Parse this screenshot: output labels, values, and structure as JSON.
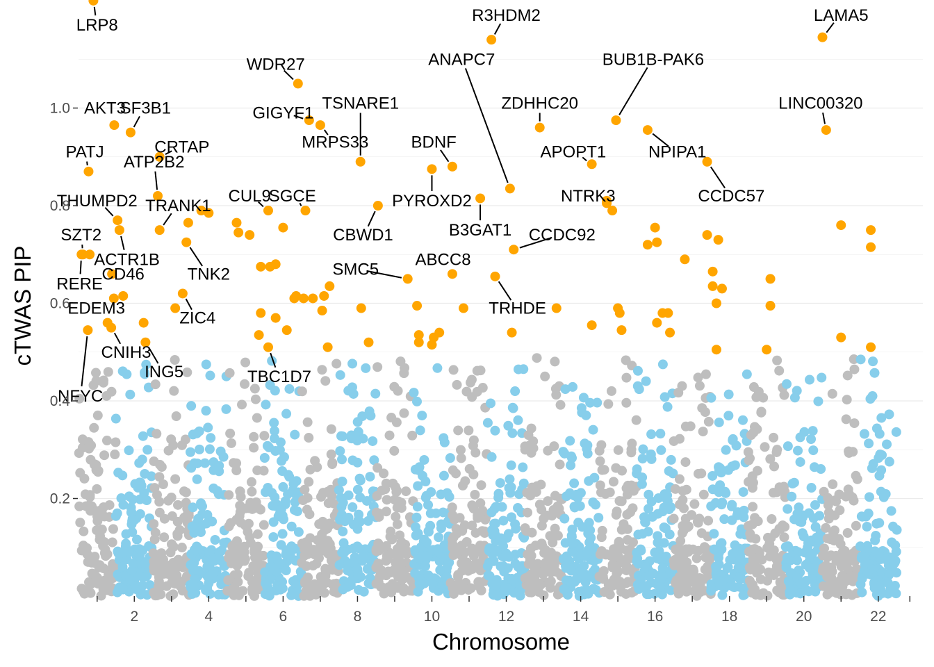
{
  "chart_data": {
    "type": "scatter",
    "title": "",
    "xlabel": "Chromosome",
    "ylabel": "cTWAS PIP",
    "grid": true,
    "xlim": [
      0.3,
      23
    ],
    "ylim": [
      0,
      1.2
    ],
    "y_ticks": [
      0.2,
      0.4,
      0.6,
      0.8,
      1.0
    ],
    "y_tick_labels": [
      "0.2",
      "0.4",
      "0.6",
      "0.8",
      "1.0"
    ],
    "chromosome_bounds": [
      0.3,
      1.3,
      2.3,
      3.3,
      4.3,
      5.3,
      6.3,
      7.3,
      8.3,
      9.3,
      10.3,
      11.3,
      12.3,
      13.3,
      14.3,
      15.3,
      16.3,
      17.3,
      18.3,
      19.3,
      20.3,
      21.3,
      22.3,
      23.0
    ],
    "chromosome_widths": [
      9.7,
      9.5,
      7.9,
      7.5,
      7.1,
      6.7,
      6.3,
      5.8,
      5.3,
      5.3,
      5.3,
      5.2,
      4.5,
      4.1,
      3.9,
      3.5,
      3.2,
      3.1,
      2.3,
      2.5,
      1.8,
      2.0
    ],
    "x_tick_positions": [
      0.8,
      1.8,
      2.8,
      3.8,
      4.8,
      5.8,
      6.8,
      7.8,
      8.8,
      9.8,
      10.8,
      11.8,
      12.8,
      13.8,
      14.8,
      15.8,
      16.8,
      17.8,
      18.8,
      19.8,
      20.8,
      21.8,
      22.65
    ],
    "x_tick_labels": [
      "",
      "2",
      "",
      "4",
      "",
      "6",
      "",
      "8",
      "",
      "10",
      "",
      "12",
      "",
      "14",
      "",
      "16",
      "",
      "18",
      "",
      "20",
      "",
      "22",
      ""
    ],
    "colors": {
      "odd_chromosome": "#bebebe",
      "even_chromosome": "#87ceeb",
      "significant": "#ffa500",
      "grid": "#ebebeb",
      "tick": "#333333",
      "leader": "#000000"
    },
    "significance_threshold": 0.5,
    "background_points_per_chromosome": 110,
    "significant_genes": [
      {
        "gene": "LRP8",
        "chr": 1,
        "pos": 0.4,
        "pip": 1.22,
        "label": "LRP8",
        "label_x": 0.1,
        "label_y": 1.17
      },
      {
        "gene": "AKT3",
        "chr": 1,
        "pos": 0.96,
        "pip": 0.965,
        "label": "AKT3",
        "label_x": -0.25,
        "label_y": 1.0
      },
      {
        "gene": "SF3B1",
        "chr": 2,
        "pos": 0.4,
        "pip": 0.95,
        "label": "SF3B1",
        "label_x": 0.4,
        "label_y": 1.0
      },
      {
        "gene": "PATJ",
        "chr": 1,
        "pos": 0.27,
        "pip": 0.87,
        "label": "PATJ",
        "label_x": -0.1,
        "label_y": 0.91
      },
      {
        "gene": "ATP2B2",
        "chr": 3,
        "pos": 0.13,
        "pip": 0.82,
        "label": "ATP2B2",
        "label_x": -0.1,
        "label_y": 0.89
      },
      {
        "gene": "CRTAP",
        "chr": 3,
        "pos": 0.18,
        "pip": 0.9,
        "label": "CRTAP",
        "label_x": 0.6,
        "label_y": 0.92
      },
      {
        "gene": "THUMPD2",
        "chr": 2,
        "pos": 0.05,
        "pip": 0.77,
        "label": "THUMPD2",
        "label_x": -0.55,
        "label_y": 0.81
      },
      {
        "gene": "TRANK1",
        "chr": 3,
        "pos": 0.18,
        "pip": 0.75,
        "label": "TRANK1",
        "label_x": 0.5,
        "label_y": 0.8
      },
      {
        "gene": "ACTR1B",
        "chr": 2,
        "pos": 0.1,
        "pip": 0.75,
        "label": "ACTR1B",
        "label_x": 0.2,
        "label_y": 0.69
      },
      {
        "gene": "SZT2",
        "chr": 1,
        "pos": 0.12,
        "pip": 0.7,
        "label": "SZT2",
        "label_x": -0.05,
        "label_y": 0.74
      },
      {
        "gene": "RERE",
        "chr": 1,
        "pos": 0.08,
        "pip": 0.7,
        "label": "RERE",
        "label_x": -0.05,
        "label_y": 0.64
      },
      {
        "gene": "CD46",
        "chr": 1,
        "pos": 0.9,
        "pip": 0.66,
        "label": "CD46",
        "label_x": 0.3,
        "label_y": 0.66
      },
      {
        "gene": "EDEM3",
        "chr": 1,
        "pos": 0.78,
        "pip": 0.56,
        "label": "EDEM3",
        "label_x": -0.3,
        "label_y": 0.59
      },
      {
        "gene": "CNIH3",
        "chr": 1,
        "pos": 0.88,
        "pip": 0.55,
        "label": "CNIH3",
        "label_x": 0.4,
        "label_y": 0.5
      },
      {
        "gene": "NFYC",
        "chr": 1,
        "pos": 0.25,
        "pip": 0.545,
        "label": "NFYC",
        "label_x": -0.2,
        "label_y": 0.41
      },
      {
        "gene": "ZIC4",
        "chr": 3,
        "pos": 0.8,
        "pip": 0.62,
        "label": "ZIC4",
        "label_x": 0.4,
        "label_y": 0.57
      },
      {
        "gene": "ING5",
        "chr": 2,
        "pos": 0.8,
        "pip": 0.52,
        "label": "ING5",
        "label_x": 0.5,
        "label_y": 0.46
      },
      {
        "gene": "TNK2",
        "chr": 3,
        "pos": 0.9,
        "pip": 0.725,
        "label": "TNK2",
        "label_x": 0.6,
        "label_y": 0.66
      },
      {
        "gene": "CUL9",
        "chr": 6,
        "pos": 0.1,
        "pip": 0.79,
        "label": "CUL9",
        "label_x": -0.5,
        "label_y": 0.82
      },
      {
        "gene": "SGCE",
        "chr": 7,
        "pos": 0.1,
        "pip": 0.79,
        "label": "SGCE",
        "label_x": -0.35,
        "label_y": 0.82
      },
      {
        "gene": "WDR27",
        "chr": 6,
        "pos": 0.9,
        "pip": 1.05,
        "label": "WDR27",
        "label_x": -0.6,
        "label_y": 1.09
      },
      {
        "gene": "GIGYF1",
        "chr": 7,
        "pos": 0.2,
        "pip": 0.975,
        "label": "GIGYF1",
        "label_x": -0.7,
        "label_y": 0.99
      },
      {
        "gene": "TSNARE1",
        "chr": 8,
        "pos": 0.58,
        "pip": 0.89,
        "label": "TSNARE1",
        "label_x": 0.0,
        "label_y": 1.01
      },
      {
        "gene": "MRPS33",
        "chr": 7,
        "pos": 0.5,
        "pip": 0.965,
        "label": "MRPS33",
        "label_x": 0.4,
        "label_y": 0.93
      },
      {
        "gene": "BDNF",
        "chr": 11,
        "pos": 0.05,
        "pip": 0.88,
        "label": "BDNF",
        "label_x": -0.5,
        "label_y": 0.93
      },
      {
        "gene": "PYROXD2",
        "chr": 10,
        "pos": 0.5,
        "pip": 0.875,
        "label": "PYROXD2",
        "label_x": 0.0,
        "label_y": 0.81
      },
      {
        "gene": "CBWD1",
        "chr": 9,
        "pos": 0.05,
        "pip": 0.8,
        "label": "CBWD1",
        "label_x": -0.4,
        "label_y": 0.74
      },
      {
        "gene": "SMC5",
        "chr": 9,
        "pos": 0.85,
        "pip": 0.65,
        "label": "SMC5",
        "label_x": -1.4,
        "label_y": 0.67
      },
      {
        "gene": "ABCC8",
        "chr": 11,
        "pos": 0.05,
        "pip": 0.66,
        "label": "ABCC8",
        "label_x": -0.25,
        "label_y": 0.69
      },
      {
        "gene": "TBC1D7",
        "chr": 6,
        "pos": 0.1,
        "pip": 0.51,
        "label": "TBC1D7",
        "label_x": 0.3,
        "label_y": 0.45
      },
      {
        "gene": "R3HDM2",
        "chr": 12,
        "pos": 0.1,
        "pip": 1.14,
        "label": "R3HDM2",
        "label_x": 0.4,
        "label_y": 1.19
      },
      {
        "gene": "ANAPC7",
        "chr": 12,
        "pos": 0.6,
        "pip": 0.835,
        "label": "ANAPC7",
        "label_x": -1.3,
        "label_y": 1.1
      },
      {
        "gene": "ZDHHC20",
        "chr": 13,
        "pos": 0.4,
        "pip": 0.96,
        "label": "ZDHHC20",
        "label_x": 0.0,
        "label_y": 1.01
      },
      {
        "gene": "APOPT1",
        "chr": 14,
        "pos": 0.8,
        "pip": 0.885,
        "label": "APOPT1",
        "label_x": -0.5,
        "label_y": 0.91
      },
      {
        "gene": "B3GAT1",
        "chr": 11,
        "pos": 0.8,
        "pip": 0.815,
        "label": "B3GAT1",
        "label_x": 0.0,
        "label_y": 0.75
      },
      {
        "gene": "NTRK3",
        "chr": 15,
        "pos": 0.2,
        "pip": 0.81,
        "label": "NTRK3",
        "label_x": -0.5,
        "label_y": 0.82
      },
      {
        "gene": "CCDC92",
        "chr": 12,
        "pos": 0.7,
        "pip": 0.71,
        "label": "CCDC92",
        "label_x": 1.3,
        "label_y": 0.74
      },
      {
        "gene": "TRHDE",
        "chr": 12,
        "pos": 0.2,
        "pip": 0.655,
        "label": "TRHDE",
        "label_x": 0.6,
        "label_y": 0.59
      },
      {
        "gene": "BUB1B-PAK6",
        "chr": 15,
        "pos": 0.45,
        "pip": 0.975,
        "label": "BUB1B-PAK6",
        "label_x": 1.0,
        "label_y": 1.1
      },
      {
        "gene": "NPIPA1",
        "chr": 16,
        "pos": 0.3,
        "pip": 0.955,
        "label": "NPIPA1",
        "label_x": 0.8,
        "label_y": 0.91
      },
      {
        "gene": "LAMA5",
        "chr": 20,
        "pos": 1.0,
        "pip": 1.145,
        "label": "LAMA5",
        "label_x": 0.5,
        "label_y": 1.19
      },
      {
        "gene": "LINC00320",
        "chr": 21,
        "pos": 0.1,
        "pip": 0.955,
        "label": "LINC00320",
        "label_x": -0.15,
        "label_y": 1.01
      },
      {
        "gene": "CCDC57",
        "chr": 17,
        "pos": 0.9,
        "pip": 0.89,
        "label": "CCDC57",
        "label_x": 0.65,
        "label_y": 0.82
      }
    ],
    "unlabeled_significant": [
      {
        "chr": 1,
        "pos": 0.3,
        "pip": 0.7
      },
      {
        "chr": 1,
        "pos": 0.95,
        "pip": 0.61
      },
      {
        "chr": 2,
        "pos": 0.2,
        "pip": 0.615
      },
      {
        "chr": 2,
        "pos": 0.75,
        "pip": 0.56
      },
      {
        "chr": 3,
        "pos": 0.6,
        "pip": 0.59
      },
      {
        "chr": 3,
        "pos": 0.95,
        "pip": 0.765
      },
      {
        "chr": 4,
        "pos": 0.3,
        "pip": 0.79
      },
      {
        "chr": 4,
        "pos": 0.5,
        "pip": 0.785
      },
      {
        "chr": 5,
        "pos": 0.25,
        "pip": 0.765
      },
      {
        "chr": 5,
        "pos": 0.3,
        "pip": 0.745
      },
      {
        "chr": 5,
        "pos": 0.6,
        "pip": 0.74
      },
      {
        "chr": 5,
        "pos": 0.9,
        "pip": 0.675
      },
      {
        "chr": 6,
        "pos": 0.15,
        "pip": 0.675
      },
      {
        "chr": 6,
        "pos": 0.5,
        "pip": 0.755
      },
      {
        "chr": 6,
        "pos": 0.3,
        "pip": 0.68
      },
      {
        "chr": 6,
        "pos": 0.8,
        "pip": 0.61
      },
      {
        "chr": 6,
        "pos": 0.85,
        "pip": 0.615
      },
      {
        "chr": 5,
        "pos": 0.9,
        "pip": 0.58
      },
      {
        "chr": 5,
        "pos": 0.85,
        "pip": 0.535
      },
      {
        "chr": 6,
        "pos": 0.3,
        "pip": 0.57
      },
      {
        "chr": 6,
        "pos": 0.6,
        "pip": 0.545
      },
      {
        "chr": 7,
        "pos": 0.05,
        "pip": 0.61
      },
      {
        "chr": 7,
        "pos": 0.3,
        "pip": 0.61
      },
      {
        "chr": 7,
        "pos": 0.6,
        "pip": 0.615
      },
      {
        "chr": 7,
        "pos": 0.55,
        "pip": 0.585
      },
      {
        "chr": 7,
        "pos": 0.75,
        "pip": 0.635
      },
      {
        "chr": 7,
        "pos": 0.7,
        "pip": 0.51
      },
      {
        "chr": 8,
        "pos": 0.6,
        "pip": 0.59
      },
      {
        "chr": 8,
        "pos": 0.8,
        "pip": 0.52
      },
      {
        "chr": 10,
        "pos": 0.1,
        "pip": 0.595
      },
      {
        "chr": 10,
        "pos": 0.15,
        "pip": 0.535
      },
      {
        "chr": 10,
        "pos": 0.5,
        "pip": 0.515
      },
      {
        "chr": 10,
        "pos": 0.55,
        "pip": 0.53
      },
      {
        "chr": 10,
        "pos": 0.7,
        "pip": 0.54
      },
      {
        "chr": 10,
        "pos": 0.15,
        "pip": 0.52
      },
      {
        "chr": 11,
        "pos": 0.35,
        "pip": 0.59
      },
      {
        "chr": 12,
        "pos": 0.65,
        "pip": 0.54
      },
      {
        "chr": 13,
        "pos": 0.85,
        "pip": 0.59
      },
      {
        "chr": 14,
        "pos": 0.8,
        "pip": 0.555
      },
      {
        "chr": 15,
        "pos": 0.2,
        "pip": 0.805
      },
      {
        "chr": 15,
        "pos": 0.35,
        "pip": 0.79
      },
      {
        "chr": 15,
        "pos": 0.5,
        "pip": 0.59
      },
      {
        "chr": 15,
        "pos": 0.55,
        "pip": 0.58
      },
      {
        "chr": 15,
        "pos": 0.6,
        "pip": 0.545
      },
      {
        "chr": 16,
        "pos": 0.3,
        "pip": 0.72
      },
      {
        "chr": 16,
        "pos": 0.5,
        "pip": 0.755
      },
      {
        "chr": 16,
        "pos": 0.55,
        "pip": 0.725
      },
      {
        "chr": 16,
        "pos": 0.55,
        "pip": 0.56
      },
      {
        "chr": 16,
        "pos": 0.7,
        "pip": 0.58
      },
      {
        "chr": 16,
        "pos": 0.85,
        "pip": 0.58
      },
      {
        "chr": 16,
        "pos": 0.9,
        "pip": 0.54
      },
      {
        "chr": 17,
        "pos": 0.3,
        "pip": 0.69
      },
      {
        "chr": 17,
        "pos": 0.9,
        "pip": 0.74
      },
      {
        "chr": 18,
        "pos": 0.2,
        "pip": 0.73
      },
      {
        "chr": 18,
        "pos": 0.05,
        "pip": 0.665
      },
      {
        "chr": 18,
        "pos": 0.05,
        "pip": 0.635
      },
      {
        "chr": 18,
        "pos": 0.3,
        "pip": 0.63
      },
      {
        "chr": 18,
        "pos": 0.15,
        "pip": 0.6
      },
      {
        "chr": 18,
        "pos": 0.15,
        "pip": 0.505
      },
      {
        "chr": 19,
        "pos": 0.6,
        "pip": 0.65
      },
      {
        "chr": 19,
        "pos": 0.6,
        "pip": 0.595
      },
      {
        "chr": 19,
        "pos": 0.5,
        "pip": 0.505
      },
      {
        "chr": 21,
        "pos": 0.5,
        "pip": 0.76
      },
      {
        "chr": 22,
        "pos": 0.3,
        "pip": 0.75
      },
      {
        "chr": 22,
        "pos": 0.3,
        "pip": 0.715
      },
      {
        "chr": 21,
        "pos": 0.5,
        "pip": 0.53
      },
      {
        "chr": 22,
        "pos": 0.3,
        "pip": 0.51
      }
    ]
  }
}
